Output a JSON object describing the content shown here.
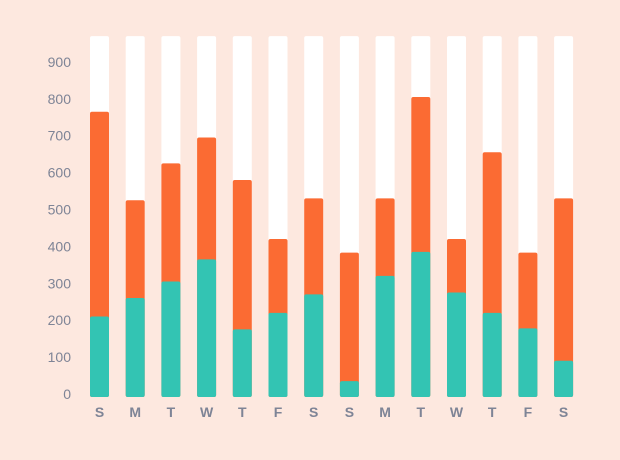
{
  "colors": {
    "background": "#fde8df",
    "track": "#ffffff",
    "series_bottom": "#33c4b3",
    "series_top": "#fb6b33",
    "label": "#7e8496"
  },
  "chart_data": {
    "type": "bar",
    "stacked": true,
    "title": "",
    "xlabel": "",
    "ylabel": "",
    "ylim": [
      0,
      970
    ],
    "y_ticks": [
      "0",
      "100",
      "200",
      "300",
      "400",
      "500",
      "600",
      "700",
      "800",
      "900"
    ],
    "categories": [
      "S",
      "M",
      "T",
      "W",
      "T",
      "F",
      "S",
      "S",
      "M",
      "T",
      "W",
      "T",
      "F",
      "S"
    ],
    "track_max": 970,
    "series": [
      {
        "values": [
          210,
          260,
          305,
          365,
          175,
          220,
          270,
          35,
          320,
          385,
          275,
          220,
          178,
          90
        ]
      },
      {
        "values": [
          555,
          265,
          320,
          330,
          405,
          200,
          260,
          348,
          210,
          420,
          145,
          435,
          205,
          440
        ]
      }
    ],
    "grid": false,
    "legend": "none"
  }
}
